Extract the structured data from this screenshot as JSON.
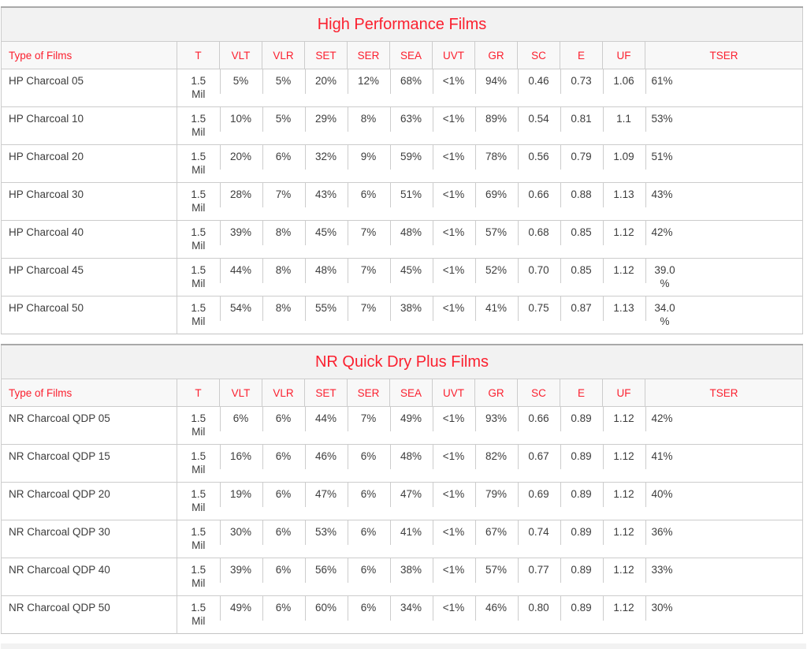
{
  "page": {
    "accent_red": "#fb202f",
    "body_text_color": "#3d3d3d",
    "border_color": "#cccccc",
    "title_row_bg": "#f2f2f2",
    "header_row_bg": "#f8f8f8"
  },
  "column_keys": [
    "name",
    "t",
    "vlt",
    "vlr",
    "set",
    "ser",
    "sea",
    "uvt",
    "gr",
    "sc",
    "e",
    "uf",
    "tser"
  ],
  "tables": [
    {
      "title": "High Performance Films",
      "columns": [
        "Type of Films",
        "T",
        "VLT",
        "VLR",
        "SET",
        "SER",
        "SEA",
        "UVT",
        "GR",
        "SC",
        "E",
        "UF",
        "TSER"
      ],
      "rows": [
        {
          "name": "HP Charcoal 05",
          "t": "1.5 Mil",
          "vlt": "5%",
          "vlr": "5%",
          "set": "20%",
          "ser": "12%",
          "sea": "68%",
          "uvt": "<1%",
          "gr": "94%",
          "sc": "0.46",
          "e": "0.73",
          "uf": "1.06",
          "tser": "61%"
        },
        {
          "name": "HP Charcoal 10",
          "t": "1.5 Mil",
          "vlt": "10%",
          "vlr": "5%",
          "set": "29%",
          "ser": "8%",
          "sea": "63%",
          "uvt": "<1%",
          "gr": "89%",
          "sc": "0.54",
          "e": "0.81",
          "uf": "1.1",
          "tser": "53%"
        },
        {
          "name": "HP Charcoal 20",
          "t": "1.5 Mil",
          "vlt": "20%",
          "vlr": "6%",
          "set": "32%",
          "ser": "9%",
          "sea": "59%",
          "uvt": "<1%",
          "gr": "78%",
          "sc": "0.56",
          "e": "0.79",
          "uf": "1.09",
          "tser": "51%"
        },
        {
          "name": "HP Charcoal 30",
          "t": "1.5 Mil",
          "vlt": "28%",
          "vlr": "7%",
          "set": "43%",
          "ser": "6%",
          "sea": "51%",
          "uvt": "<1%",
          "gr": "69%",
          "sc": "0.66",
          "e": "0.88",
          "uf": "1.13",
          "tser": "43%"
        },
        {
          "name": "HP Charcoal 40",
          "t": "1.5 Mil",
          "vlt": "39%",
          "vlr": "8%",
          "set": "45%",
          "ser": "7%",
          "sea": "48%",
          "uvt": "<1%",
          "gr": "57%",
          "sc": "0.68",
          "e": "0.85",
          "uf": "1.12",
          "tser": "42%"
        },
        {
          "name": "HP Charcoal 45",
          "t": "1.5 Mil",
          "vlt": "44%",
          "vlr": "8%",
          "set": "48%",
          "ser": "7%",
          "sea": "45%",
          "uvt": "<1%",
          "gr": "52%",
          "sc": "0.70",
          "e": "0.85",
          "uf": "1.12",
          "tser": "39.0 %"
        },
        {
          "name": "HP Charcoal 50",
          "t": "1.5 Mil",
          "vlt": "54%",
          "vlr": "8%",
          "set": "55%",
          "ser": "7%",
          "sea": "38%",
          "uvt": "<1%",
          "gr": "41%",
          "sc": "0.75",
          "e": "0.87",
          "uf": "1.13",
          "tser": "34.0 %"
        }
      ]
    },
    {
      "title": "NR Quick Dry Plus Films",
      "columns": [
        "Type of Films",
        "T",
        "VLT",
        "VLR",
        "SET",
        "SER",
        "SEA",
        "UVT",
        "GR",
        "SC",
        "E",
        "UF",
        "TSER"
      ],
      "rows": [
        {
          "name": "NR Charcoal QDP 05",
          "t": "1.5 Mil",
          "vlt": "6%",
          "vlr": "6%",
          "set": "44%",
          "ser": "7%",
          "sea": "49%",
          "uvt": "<1%",
          "gr": "93%",
          "sc": "0.66",
          "e": "0.89",
          "uf": "1.12",
          "tser": "42%"
        },
        {
          "name": "NR Charcoal QDP 15",
          "t": "1.5 Mil",
          "vlt": "16%",
          "vlr": "6%",
          "set": "46%",
          "ser": "6%",
          "sea": "48%",
          "uvt": "<1%",
          "gr": "82%",
          "sc": "0.67",
          "e": "0.89",
          "uf": "1.12",
          "tser": "41%"
        },
        {
          "name": "NR Charcoal QDP 20",
          "t": "1.5 Mil",
          "vlt": "19%",
          "vlr": "6%",
          "set": "47%",
          "ser": "6%",
          "sea": "47%",
          "uvt": "<1%",
          "gr": "79%",
          "sc": "0.69",
          "e": "0.89",
          "uf": "1.12",
          "tser": "40%"
        },
        {
          "name": "NR Charcoal QDP 30",
          "t": "1.5 Mil",
          "vlt": "30%",
          "vlr": "6%",
          "set": "53%",
          "ser": "6%",
          "sea": "41%",
          "uvt": "<1%",
          "gr": "67%",
          "sc": "0.74",
          "e": "0.89",
          "uf": "1.12",
          "tser": "36%"
        },
        {
          "name": "NR Charcoal QDP 40",
          "t": "1.5 Mil",
          "vlt": "39%",
          "vlr": "6%",
          "set": "56%",
          "ser": "6%",
          "sea": "38%",
          "uvt": "<1%",
          "gr": "57%",
          "sc": "0.77",
          "e": "0.89",
          "uf": "1.12",
          "tser": "33%"
        },
        {
          "name": "NR Charcoal QDP 50",
          "t": "1.5 Mil",
          "vlt": "49%",
          "vlr": "6%",
          "set": "60%",
          "ser": "6%",
          "sea": "34%",
          "uvt": "<1%",
          "gr": "46%",
          "sc": "0.80",
          "e": "0.89",
          "uf": "1.12",
          "tser": "30%"
        }
      ]
    }
  ]
}
